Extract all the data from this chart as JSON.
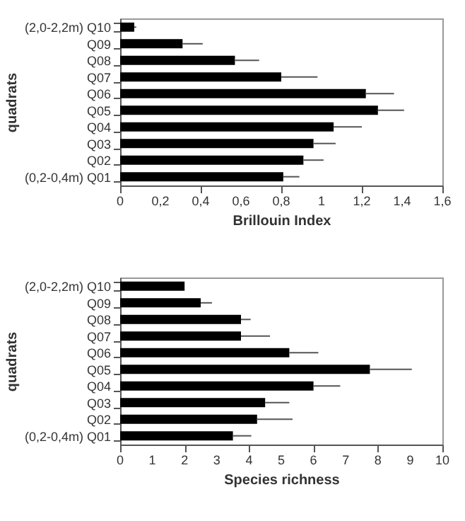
{
  "chart_data": [
    {
      "type": "bar",
      "orientation": "horizontal",
      "xlabel": "Brillouin Index",
      "ylabel": "quadrats",
      "color": "#000000",
      "categories": [
        "(2,0-2,2m) Q10",
        "Q09",
        "Q08",
        "Q07",
        "Q06",
        "Q05",
        "Q04",
        "Q03",
        "Q02",
        "(0,2-0,4m) Q01"
      ],
      "values": [
        0.07,
        0.31,
        0.57,
        0.8,
        1.22,
        1.28,
        1.06,
        0.96,
        0.91,
        0.81
      ],
      "errors": [
        [
          0.07,
          0.08
        ],
        [
          0.31,
          0.41
        ],
        [
          0.57,
          0.69
        ],
        [
          0.8,
          0.98
        ],
        [
          1.22,
          1.36
        ],
        [
          1.28,
          1.41
        ],
        [
          1.06,
          1.2
        ],
        [
          0.96,
          1.07
        ],
        [
          0.91,
          1.01
        ],
        [
          0.81,
          0.89
        ]
      ],
      "xlim": [
        0,
        1.6
      ],
      "xticks": [
        0,
        {
          "value": 0.2,
          "label": "0,2"
        },
        {
          "value": 0.4,
          "label": "0,4"
        },
        {
          "value": 0.6,
          "label": "0,6"
        },
        {
          "value": 0.8,
          "label": "0,8"
        },
        1,
        {
          "value": 1.2,
          "label": "1,2"
        },
        {
          "value": 1.4,
          "label": "1,4"
        },
        {
          "value": 1.6,
          "label": "1,6"
        }
      ]
    },
    {
      "type": "bar",
      "orientation": "horizontal",
      "xlabel": "Species richness",
      "ylabel": "quadrats",
      "color": "#000000",
      "categories": [
        "(2,0-2,2m) Q10",
        "Q09",
        "Q08",
        "Q07",
        "Q06",
        "Q05",
        "Q04",
        "Q03",
        "Q02",
        "(0,2-0,4m) Q01"
      ],
      "values": [
        2,
        2.5,
        3.75,
        3.75,
        5.25,
        7.75,
        6,
        4.5,
        4.25,
        3.5
      ],
      "errors": [
        null,
        [
          2.5,
          2.85
        ],
        [
          3.75,
          4.05
        ],
        [
          3.75,
          4.65
        ],
        [
          5.25,
          6.15
        ],
        [
          7.75,
          9.05
        ],
        [
          6,
          6.83
        ],
        [
          4.5,
          5.25
        ],
        [
          4.25,
          5.35
        ],
        [
          3.5,
          4.07
        ]
      ],
      "xlim": [
        0,
        10
      ],
      "xticks": [
        0,
        1,
        2,
        3,
        4,
        5,
        6,
        7,
        8,
        9,
        10
      ]
    }
  ]
}
